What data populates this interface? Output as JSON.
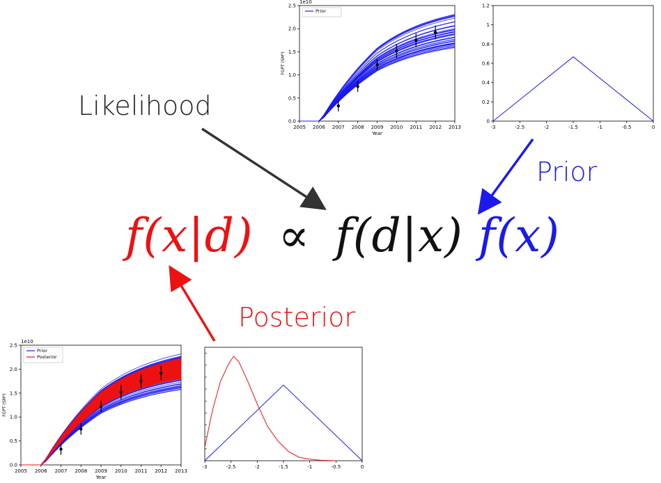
{
  "labels": {
    "likelihood": "Likelihood",
    "prior": "Prior",
    "posterior": "Posterior"
  },
  "equation": {
    "posterior_term": "f(x|d)",
    "proportional": "∝",
    "likelihood_term": "f(d|x)",
    "prior_term": "f(x)"
  },
  "colors": {
    "posterior": "#ee1111",
    "prior": "#1a1aee",
    "likelihood": "#222222"
  },
  "chart_data": [
    {
      "id": "likelihood-fgpt",
      "type": "line",
      "xlabel": "Year",
      "ylabel": "FGPT (SM³)",
      "scale_label": "1e10",
      "xlim": [
        2005,
        2013
      ],
      "ylim": [
        0,
        2.5
      ],
      "x_ticks": [
        "2005",
        "2006",
        "2007",
        "2008",
        "2009",
        "2010",
        "2011",
        "2012",
        "2013"
      ],
      "y_ticks": [
        "0.0",
        "0.5",
        "1.0",
        "1.5",
        "2.0",
        "2.5"
      ],
      "legend": [
        "Prior"
      ],
      "observations": [
        {
          "x": 2007,
          "y": 0.33,
          "err": 0.12
        },
        {
          "x": 2008,
          "y": 0.75,
          "err": 0.12
        },
        {
          "x": 2009,
          "y": 1.22,
          "err": 0.12
        },
        {
          "x": 2010,
          "y": 1.52,
          "err": 0.15
        },
        {
          "x": 2011,
          "y": 1.75,
          "err": 0.15
        },
        {
          "x": 2012,
          "y": 1.92,
          "err": 0.15
        }
      ],
      "prior_ensemble_range_2013": [
        1.55,
        2.32
      ]
    },
    {
      "id": "prior-distribution",
      "type": "line",
      "xlim": [
        -3,
        0
      ],
      "ylim": [
        0,
        1.2
      ],
      "x_ticks": [
        "-3",
        "-2.5",
        "-2",
        "-1.5",
        "-1",
        "-0.5",
        "0"
      ],
      "y_ticks": [
        "0",
        "0.2",
        "0.4",
        "0.6",
        "0.8",
        "1",
        "1.2"
      ],
      "series": [
        {
          "values": [
            [
              -3,
              0
            ],
            [
              -1.5,
              0.667
            ],
            [
              0,
              0
            ]
          ]
        }
      ]
    },
    {
      "id": "posterior-fgpt",
      "type": "line",
      "xlabel": "Year",
      "ylabel": "FGPT (SM³)",
      "scale_label": "1e10",
      "xlim": [
        2005,
        2013
      ],
      "ylim": [
        0,
        2.5
      ],
      "x_ticks": [
        "2005",
        "2006",
        "2007",
        "2008",
        "2009",
        "2010",
        "2011",
        "2012",
        "2013"
      ],
      "y_ticks": [
        "0.0",
        "0.5",
        "1.0",
        "1.5",
        "2.0",
        "2.5"
      ],
      "legend": [
        "Prior",
        "Posterior"
      ],
      "observations": [
        {
          "x": 2007,
          "y": 0.33,
          "err": 0.12
        },
        {
          "x": 2008,
          "y": 0.75,
          "err": 0.12
        },
        {
          "x": 2009,
          "y": 1.22,
          "err": 0.12
        },
        {
          "x": 2010,
          "y": 1.52,
          "err": 0.15
        },
        {
          "x": 2011,
          "y": 1.75,
          "err": 0.15
        },
        {
          "x": 2012,
          "y": 1.92,
          "err": 0.15
        }
      ],
      "prior_ensemble_range_2013": [
        1.55,
        2.32
      ],
      "posterior_band_range_2013": [
        1.8,
        2.22
      ]
    },
    {
      "id": "posterior-distribution",
      "type": "line",
      "xlim": [
        -3,
        0
      ],
      "x_ticks": [
        "-3",
        "-2.5",
        "-2",
        "-1.5",
        "-1",
        "-0.5",
        "0"
      ],
      "series": [
        {
          "values": [
            [
              -3,
              0
            ],
            [
              -1.5,
              0.667
            ],
            [
              0,
              0
            ]
          ]
        },
        {
          "values": [
            [
              -3,
              0.12
            ],
            [
              -2.85,
              0.45
            ],
            [
              -2.7,
              0.7
            ],
            [
              -2.55,
              0.85
            ],
            [
              -2.45,
              0.92
            ],
            [
              -2.35,
              0.87
            ],
            [
              -2.2,
              0.72
            ],
            [
              -2.0,
              0.5
            ],
            [
              -1.8,
              0.3
            ],
            [
              -1.6,
              0.17
            ],
            [
              -1.4,
              0.08
            ],
            [
              -1.2,
              0.03
            ],
            [
              -1.0,
              0.015
            ],
            [
              -0.8,
              0.005
            ],
            [
              -0.5,
              0.0
            ]
          ]
        }
      ]
    }
  ]
}
